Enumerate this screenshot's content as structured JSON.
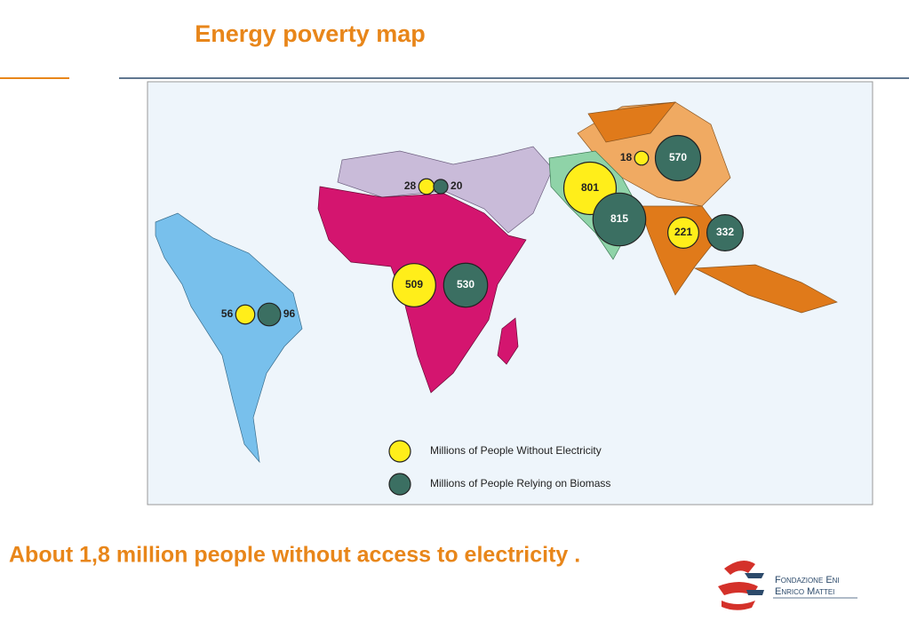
{
  "header": {
    "title": "Energy poverty map"
  },
  "map": {
    "legend": [
      {
        "label": "Millions of People Without Electricity",
        "color": "#ffee1a"
      },
      {
        "label": "Millions of People Relying on Biomass",
        "color": "#3b6f62"
      }
    ],
    "regions": [
      {
        "without_electricity": 56,
        "relying_on_biomass": 96
      },
      {
        "without_electricity": 28,
        "relying_on_biomass": 20
      },
      {
        "without_electricity": 509,
        "relying_on_biomass": 530
      },
      {
        "without_electricity": 18,
        "relying_on_biomass": 570
      },
      {
        "without_electricity": 801,
        "relying_on_biomass": 815
      },
      {
        "without_electricity": 221,
        "relying_on_biomass": 332
      }
    ]
  },
  "footer": {
    "statement": "About 1,8 million people without access to electricity .",
    "logo": {
      "line1": "Fondazione Eni",
      "line2": "Enrico Mattei"
    }
  }
}
